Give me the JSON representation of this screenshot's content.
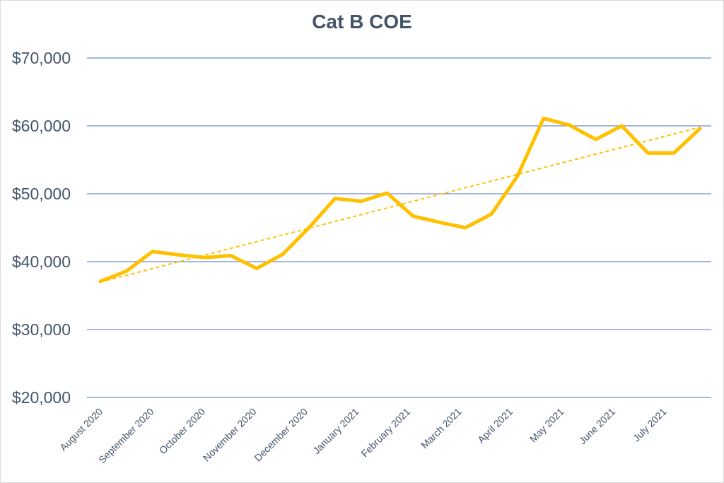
{
  "chart_data": {
    "type": "line",
    "title": "Cat B COE",
    "xlabel": "",
    "ylabel": "",
    "ylim": [
      20000,
      70000
    ],
    "yticks": [
      20000,
      30000,
      40000,
      50000,
      60000,
      70000
    ],
    "ytick_labels": [
      "$20,000",
      "$30,000",
      "$40,000",
      "$50,000",
      "$60,000",
      "$70,000"
    ],
    "grid": true,
    "legend": "none",
    "x_labels": [
      "August 2020",
      "September 2020",
      "October 2020",
      "November 2020",
      "December 2020",
      "January 2021",
      "February 2021",
      "March 2021",
      "April 2021",
      "May 2021",
      "June 2021",
      "July 2021"
    ],
    "series": [
      {
        "color": "#ffc000",
        "values": [
          37100,
          38600,
          41500,
          41000,
          40600,
          40900,
          39000,
          41100,
          45000,
          49300,
          48900,
          50100,
          46700,
          45800,
          45000,
          47000,
          52600,
          61100,
          60100,
          58000,
          60000,
          56000,
          56000,
          59600
        ]
      }
    ],
    "trendline": {
      "type": "linear",
      "style": "dashed",
      "color": "#ffc000",
      "start": 37000,
      "end": 59800
    }
  }
}
